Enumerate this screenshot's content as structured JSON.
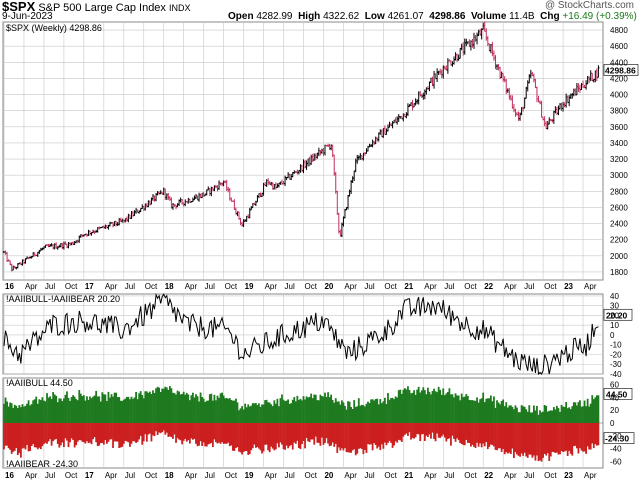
{
  "header": {
    "symbol": "$SPX",
    "name": "S&P 500 Large Cap Index",
    "exchange": "INDX",
    "date": "9-Jun-2023",
    "copyright": "@ StockCharts.com",
    "open_label": "Open",
    "open": "4282.99",
    "high_label": "High",
    "high": "4322.62",
    "low_label": "Low",
    "low": "4261.07",
    "close": "4298.86",
    "volume_label": "Volume",
    "volume": "11.4B",
    "chg_label": "Chg",
    "chg": "+16.49 (+0.39%)"
  },
  "colors": {
    "up": "#000000",
    "down": "#c0305a",
    "bull": "#1e7a1e",
    "bear": "#cc1f1f",
    "grid": "#c8c8c8"
  },
  "chart_data": [
    {
      "type": "line",
      "title": "$SPX (Weekly) 4298.86",
      "last_value": "4298.86",
      "ylim": [
        1700,
        4900
      ],
      "y_ticks": [
        1800,
        2000,
        2200,
        2400,
        2600,
        2800,
        3000,
        3200,
        3400,
        3600,
        3800,
        4000,
        4200,
        4400,
        4600,
        4800
      ],
      "x_labels": [
        "16",
        "Apr",
        "Jul",
        "Oct",
        "17",
        "Apr",
        "Jul",
        "Oct",
        "18",
        "Apr",
        "Jul",
        "Oct",
        "19",
        "Apr",
        "Jul",
        "Oct",
        "20",
        "Apr",
        "Jul",
        "Oct",
        "21",
        "Apr",
        "Jul",
        "Oct",
        "22",
        "Apr",
        "Jul",
        "Oct",
        "23",
        "Apr"
      ],
      "anchors_x": [
        2016.0,
        2016.1,
        2016.5,
        2016.85,
        2017.0,
        2017.5,
        2018.0,
        2018.1,
        2018.5,
        2018.75,
        2018.98,
        2019.3,
        2019.4,
        2019.6,
        2020.1,
        2020.2,
        2020.4,
        2020.6,
        2021.0,
        2021.5,
        2022.0,
        2022.45,
        2022.6,
        2022.78,
        2023.0,
        2023.45
      ],
      "anchors_y": [
        2040,
        1830,
        2100,
        2150,
        2270,
        2430,
        2800,
        2620,
        2760,
        2920,
        2380,
        2930,
        2840,
        3000,
        3390,
        2220,
        3150,
        3400,
        3760,
        4330,
        4790,
        3680,
        4270,
        3590,
        3900,
        4299
      ]
    },
    {
      "type": "line",
      "title": "!AAIIBULL-!AAIIBEAR 20.20",
      "last_value": "20.20",
      "ylim": [
        -40,
        42
      ],
      "y_ticks": [
        40,
        30,
        20,
        10,
        0,
        -10,
        -20,
        -30,
        -40
      ],
      "tick_labels": [
        "40",
        "30",
        "20",
        "10",
        "0",
        "-10",
        "-20",
        "-30",
        "-40"
      ]
    },
    {
      "type": "bar",
      "series": [
        {
          "name": "!AAIIBULL",
          "title": "!AAIIBULL 44.50",
          "last_value": "44.50"
        },
        {
          "name": "!AAIIBEAR",
          "title": "!AAIIBEAR -24.30",
          "last_value": "-24.30"
        }
      ],
      "ylim": [
        -70,
        70
      ],
      "y_ticks": [
        60,
        40,
        20,
        0,
        -20,
        -40,
        -60
      ],
      "tick_labels": [
        "60",
        "40",
        "20",
        "0",
        "-20",
        "-40",
        "-60"
      ]
    }
  ]
}
